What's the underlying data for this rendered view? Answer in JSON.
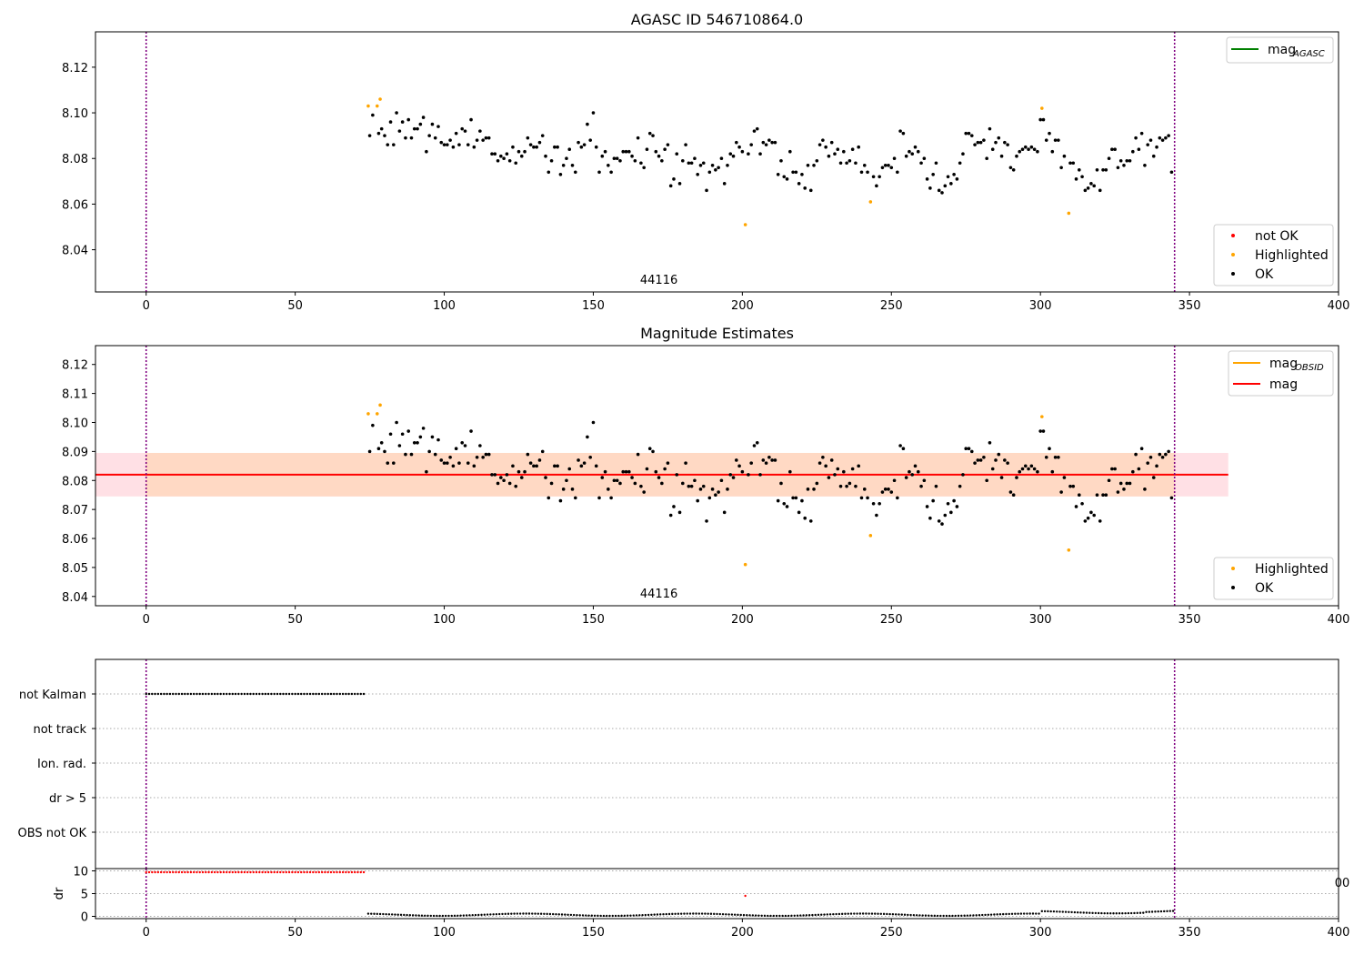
{
  "chart_data": [
    {
      "type": "scatter",
      "title": "AGASC ID 546710864.0",
      "xlim": [
        -17,
        400
      ],
      "ylim": [
        8.0215,
        8.1355
      ],
      "xticks": [
        0,
        50,
        100,
        150,
        200,
        250,
        300,
        350,
        400
      ],
      "yticks": [
        8.04,
        8.06,
        8.08,
        8.1,
        8.12
      ],
      "ytick_labels": [
        "8.04",
        "8.06",
        "8.08",
        "8.10",
        "8.12"
      ],
      "obsid_label": "44116",
      "obsid_label_x": 172,
      "vlines_x": [
        0,
        345
      ],
      "vline_color": "#800080",
      "legend_top": {
        "placement": "top-right",
        "entries": [
          {
            "label_main": "mag",
            "label_sub": "AGASC",
            "color": "#008000"
          }
        ]
      },
      "legend_bottom": {
        "placement": "bottom-right",
        "entries": [
          {
            "label": "not OK",
            "color": "#ff0000"
          },
          {
            "label": "Highlighted",
            "color": "#ffa500"
          },
          {
            "label": "OK",
            "color": "#000000"
          }
        ]
      },
      "series": [
        {
          "name": "Highlighted",
          "color": "#ffa500",
          "points": [
            [
              74.5,
              8.103
            ],
            [
              77.5,
              8.103
            ],
            [
              78.5,
              8.106
            ],
            [
              201,
              8.051
            ],
            [
              243,
              8.061
            ],
            [
              300.5,
              8.102
            ],
            [
              309.5,
              8.056
            ]
          ]
        },
        {
          "name": "OK",
          "color": "#000000",
          "points_source": "ok"
        }
      ]
    },
    {
      "type": "scatter",
      "title": "Magnitude Estimates",
      "xlim": [
        -17,
        400
      ],
      "ylim": [
        8.0368,
        8.1265
      ],
      "xticks": [
        0,
        50,
        100,
        150,
        200,
        250,
        300,
        350,
        400
      ],
      "yticks": [
        8.04,
        8.05,
        8.06,
        8.07,
        8.08,
        8.09,
        8.1,
        8.11,
        8.12
      ],
      "ytick_labels": [
        "8.04",
        "8.05",
        "8.06",
        "8.07",
        "8.08",
        "8.09",
        "8.10",
        "8.11",
        "8.12"
      ],
      "obsid_label": "44116",
      "obsid_label_x": 172,
      "vlines_x": [
        0,
        345
      ],
      "mag": 8.082,
      "mag_band": [
        8.0745,
        8.0895
      ],
      "band_x_range": [
        -17,
        363
      ],
      "obsid_band_x_range": [
        0,
        345
      ],
      "mag_color": "#ff0000",
      "band_color": "#ffdde2",
      "obsid_band_color": "#ffd6c0",
      "legend_top": {
        "placement": "top-right",
        "entries": [
          {
            "label_main": "mag",
            "label_sub": "OBSID",
            "color": "#ffa500"
          },
          {
            "label_main": "mag",
            "label_sub": "",
            "color": "#ff0000"
          }
        ]
      },
      "legend_bottom": {
        "placement": "bottom-right",
        "entries": [
          {
            "label": "Highlighted",
            "color": "#ffa500"
          },
          {
            "label": "OK",
            "color": "#000000"
          }
        ]
      },
      "series": [
        {
          "name": "Highlighted",
          "color": "#ffa500",
          "points": [
            [
              74.5,
              8.103
            ],
            [
              77.5,
              8.103
            ],
            [
              78.5,
              8.106
            ],
            [
              201,
              8.051
            ],
            [
              243,
              8.061
            ],
            [
              300.5,
              8.102
            ],
            [
              309.5,
              8.056
            ]
          ]
        },
        {
          "name": "OK",
          "color": "#000000",
          "points_source": "ok"
        }
      ]
    },
    {
      "type": "scatter",
      "title": "",
      "xlim": [
        -17,
        400
      ],
      "categories": [
        "not Kalman",
        "not track",
        "Ion. rad.",
        "dr > 5",
        "OBS not OK"
      ],
      "vlines_x": [
        0,
        345
      ],
      "flag_series": [
        {
          "category": "not Kalman",
          "x_start": 0,
          "x_end": 73.5,
          "step": 1,
          "color": "#000000"
        }
      ]
    },
    {
      "type": "scatter",
      "title": "",
      "ylabel": "dr",
      "xlim": [
        -17,
        400
      ],
      "ylim": [
        -0.5,
        10.5
      ],
      "xticks": [
        0,
        50,
        100,
        150,
        200,
        250,
        300,
        350,
        400
      ],
      "yticks": [
        0,
        5,
        10
      ],
      "ytick_labels": [
        "0",
        "5",
        "10"
      ],
      "vlines_x": [
        0,
        345
      ],
      "overlap_tick_label": "00",
      "series": [
        {
          "name": "not OK",
          "color": "#ff0000",
          "x_start": 0,
          "x_end": 73.5,
          "step": 1,
          "value": 9.7,
          "points": [
            [
              201,
              4.5
            ]
          ]
        },
        {
          "name": "OK",
          "color": "#000000",
          "x_start": 74.5,
          "x_end": 345,
          "step": 1,
          "value_range": [
            0.1,
            1.3
          ]
        }
      ]
    }
  ],
  "ok_points": [
    [
      75,
      8.09
    ],
    [
      76,
      8.099
    ],
    [
      78,
      8.091
    ],
    [
      79,
      8.093
    ],
    [
      80,
      8.09
    ],
    [
      81,
      8.086
    ],
    [
      82,
      8.096
    ],
    [
      83,
      8.086
    ],
    [
      84,
      8.1
    ],
    [
      85,
      8.092
    ],
    [
      86,
      8.096
    ],
    [
      87,
      8.089
    ],
    [
      88,
      8.097
    ],
    [
      89,
      8.089
    ],
    [
      90,
      8.093
    ],
    [
      91,
      8.093
    ],
    [
      92,
      8.095
    ],
    [
      93,
      8.098
    ],
    [
      94,
      8.083
    ],
    [
      95,
      8.09
    ],
    [
      96,
      8.095
    ],
    [
      97,
      8.089
    ],
    [
      98,
      8.094
    ],
    [
      99,
      8.087
    ],
    [
      100,
      8.086
    ],
    [
      101,
      8.086
    ],
    [
      102,
      8.088
    ],
    [
      103,
      8.085
    ],
    [
      104,
      8.091
    ],
    [
      105,
      8.086
    ],
    [
      106,
      8.093
    ],
    [
      107,
      8.092
    ],
    [
      108,
      8.086
    ],
    [
      109,
      8.097
    ],
    [
      110,
      8.085
    ],
    [
      111,
      8.088
    ],
    [
      112,
      8.092
    ],
    [
      113,
      8.088
    ],
    [
      114,
      8.089
    ],
    [
      115,
      8.089
    ],
    [
      116,
      8.082
    ],
    [
      117,
      8.082
    ],
    [
      118,
      8.079
    ],
    [
      119,
      8.081
    ],
    [
      120,
      8.08
    ],
    [
      121,
      8.082
    ],
    [
      122,
      8.079
    ],
    [
      123,
      8.085
    ],
    [
      124,
      8.078
    ],
    [
      125,
      8.083
    ],
    [
      126,
      8.081
    ],
    [
      127,
      8.083
    ],
    [
      128,
      8.089
    ],
    [
      129,
      8.086
    ],
    [
      130,
      8.085
    ],
    [
      131,
      8.085
    ],
    [
      132,
      8.087
    ],
    [
      133,
      8.09
    ],
    [
      134,
      8.081
    ],
    [
      135,
      8.074
    ],
    [
      136,
      8.079
    ],
    [
      137,
      8.085
    ],
    [
      138,
      8.085
    ],
    [
      139,
      8.073
    ],
    [
      140,
      8.077
    ],
    [
      141,
      8.08
    ],
    [
      142,
      8.084
    ],
    [
      143,
      8.077
    ],
    [
      144,
      8.074
    ],
    [
      145,
      8.087
    ],
    [
      146,
      8.085
    ],
    [
      147,
      8.086
    ],
    [
      148,
      8.095
    ],
    [
      149,
      8.088
    ],
    [
      150,
      8.1
    ],
    [
      151,
      8.085
    ],
    [
      152,
      8.074
    ],
    [
      153,
      8.081
    ],
    [
      154,
      8.083
    ],
    [
      155,
      8.077
    ],
    [
      156,
      8.074
    ],
    [
      157,
      8.08
    ],
    [
      158,
      8.08
    ],
    [
      159,
      8.079
    ],
    [
      160,
      8.083
    ],
    [
      161,
      8.083
    ],
    [
      162,
      8.083
    ],
    [
      163,
      8.081
    ],
    [
      164,
      8.079
    ],
    [
      165,
      8.089
    ],
    [
      166,
      8.078
    ],
    [
      167,
      8.076
    ],
    [
      168,
      8.084
    ],
    [
      169,
      8.091
    ],
    [
      170,
      8.09
    ],
    [
      171,
      8.083
    ],
    [
      172,
      8.081
    ],
    [
      173,
      8.079
    ],
    [
      174,
      8.084
    ],
    [
      175,
      8.086
    ],
    [
      176,
      8.068
    ],
    [
      177,
      8.071
    ],
    [
      178,
      8.082
    ],
    [
      179,
      8.069
    ],
    [
      180,
      8.079
    ],
    [
      181,
      8.086
    ],
    [
      182,
      8.078
    ],
    [
      183,
      8.078
    ],
    [
      184,
      8.08
    ],
    [
      185,
      8.073
    ],
    [
      186,
      8.077
    ],
    [
      187,
      8.078
    ],
    [
      188,
      8.066
    ],
    [
      189,
      8.074
    ],
    [
      190,
      8.077
    ],
    [
      191,
      8.075
    ],
    [
      192,
      8.076
    ],
    [
      193,
      8.08
    ],
    [
      194,
      8.069
    ],
    [
      195,
      8.077
    ],
    [
      196,
      8.082
    ],
    [
      197,
      8.081
    ],
    [
      198,
      8.087
    ],
    [
      199,
      8.085
    ],
    [
      200,
      8.083
    ],
    [
      202,
      8.082
    ],
    [
      203,
      8.086
    ],
    [
      204,
      8.092
    ],
    [
      205,
      8.093
    ],
    [
      206,
      8.082
    ],
    [
      207,
      8.087
    ],
    [
      208,
      8.086
    ],
    [
      209,
      8.088
    ],
    [
      210,
      8.087
    ],
    [
      211,
      8.087
    ],
    [
      212,
      8.073
    ],
    [
      213,
      8.079
    ],
    [
      214,
      8.072
    ],
    [
      215,
      8.071
    ],
    [
      216,
      8.083
    ],
    [
      217,
      8.074
    ],
    [
      218,
      8.074
    ],
    [
      219,
      8.069
    ],
    [
      220,
      8.073
    ],
    [
      221,
      8.067
    ],
    [
      222,
      8.077
    ],
    [
      223,
      8.066
    ],
    [
      224,
      8.077
    ],
    [
      225,
      8.079
    ],
    [
      226,
      8.086
    ],
    [
      227,
      8.088
    ],
    [
      228,
      8.085
    ],
    [
      229,
      8.081
    ],
    [
      230,
      8.087
    ],
    [
      231,
      8.082
    ],
    [
      232,
      8.084
    ],
    [
      233,
      8.078
    ],
    [
      234,
      8.083
    ],
    [
      235,
      8.078
    ],
    [
      236,
      8.079
    ],
    [
      237,
      8.084
    ],
    [
      238,
      8.078
    ],
    [
      239,
      8.085
    ],
    [
      240,
      8.074
    ],
    [
      241,
      8.077
    ],
    [
      242,
      8.074
    ],
    [
      244,
      8.072
    ],
    [
      245,
      8.068
    ],
    [
      246,
      8.072
    ],
    [
      247,
      8.076
    ],
    [
      248,
      8.077
    ],
    [
      249,
      8.077
    ],
    [
      250,
      8.076
    ],
    [
      251,
      8.08
    ],
    [
      252,
      8.074
    ],
    [
      253,
      8.092
    ],
    [
      254,
      8.091
    ],
    [
      255,
      8.081
    ],
    [
      256,
      8.083
    ],
    [
      257,
      8.082
    ],
    [
      258,
      8.085
    ],
    [
      259,
      8.083
    ],
    [
      260,
      8.078
    ],
    [
      261,
      8.08
    ],
    [
      262,
      8.071
    ],
    [
      263,
      8.067
    ],
    [
      264,
      8.073
    ],
    [
      265,
      8.078
    ],
    [
      266,
      8.066
    ],
    [
      267,
      8.065
    ],
    [
      268,
      8.068
    ],
    [
      269,
      8.072
    ],
    [
      270,
      8.069
    ],
    [
      271,
      8.073
    ],
    [
      272,
      8.071
    ],
    [
      273,
      8.078
    ],
    [
      274,
      8.082
    ],
    [
      275,
      8.091
    ],
    [
      276,
      8.091
    ],
    [
      277,
      8.09
    ],
    [
      278,
      8.086
    ],
    [
      279,
      8.087
    ],
    [
      280,
      8.087
    ],
    [
      281,
      8.088
    ],
    [
      282,
      8.08
    ],
    [
      283,
      8.093
    ],
    [
      284,
      8.084
    ],
    [
      285,
      8.087
    ],
    [
      286,
      8.089
    ],
    [
      287,
      8.081
    ],
    [
      288,
      8.087
    ],
    [
      289,
      8.086
    ],
    [
      290,
      8.076
    ],
    [
      291,
      8.075
    ],
    [
      292,
      8.081
    ],
    [
      293,
      8.083
    ],
    [
      294,
      8.084
    ],
    [
      295,
      8.085
    ],
    [
      296,
      8.084
    ],
    [
      297,
      8.085
    ],
    [
      298,
      8.084
    ],
    [
      299,
      8.083
    ],
    [
      300,
      8.097
    ],
    [
      301,
      8.097
    ],
    [
      302,
      8.088
    ],
    [
      303,
      8.091
    ],
    [
      304,
      8.083
    ],
    [
      305,
      8.088
    ],
    [
      306,
      8.088
    ],
    [
      307,
      8.076
    ],
    [
      308,
      8.081
    ],
    [
      310,
      8.078
    ],
    [
      311,
      8.078
    ],
    [
      312,
      8.071
    ],
    [
      313,
      8.075
    ],
    [
      314,
      8.072
    ],
    [
      315,
      8.066
    ],
    [
      316,
      8.067
    ],
    [
      317,
      8.069
    ],
    [
      318,
      8.068
    ],
    [
      319,
      8.075
    ],
    [
      320,
      8.066
    ],
    [
      321,
      8.075
    ],
    [
      322,
      8.075
    ],
    [
      323,
      8.08
    ],
    [
      324,
      8.084
    ],
    [
      325,
      8.084
    ],
    [
      326,
      8.076
    ],
    [
      327,
      8.079
    ],
    [
      328,
      8.077
    ],
    [
      329,
      8.079
    ],
    [
      330,
      8.079
    ],
    [
      331,
      8.083
    ],
    [
      332,
      8.089
    ],
    [
      333,
      8.084
    ],
    [
      334,
      8.091
    ],
    [
      335,
      8.077
    ],
    [
      336,
      8.086
    ],
    [
      337,
      8.088
    ],
    [
      338,
      8.081
    ],
    [
      339,
      8.085
    ],
    [
      340,
      8.089
    ],
    [
      341,
      8.088
    ],
    [
      342,
      8.089
    ],
    [
      343,
      8.09
    ],
    [
      344,
      8.074
    ]
  ]
}
